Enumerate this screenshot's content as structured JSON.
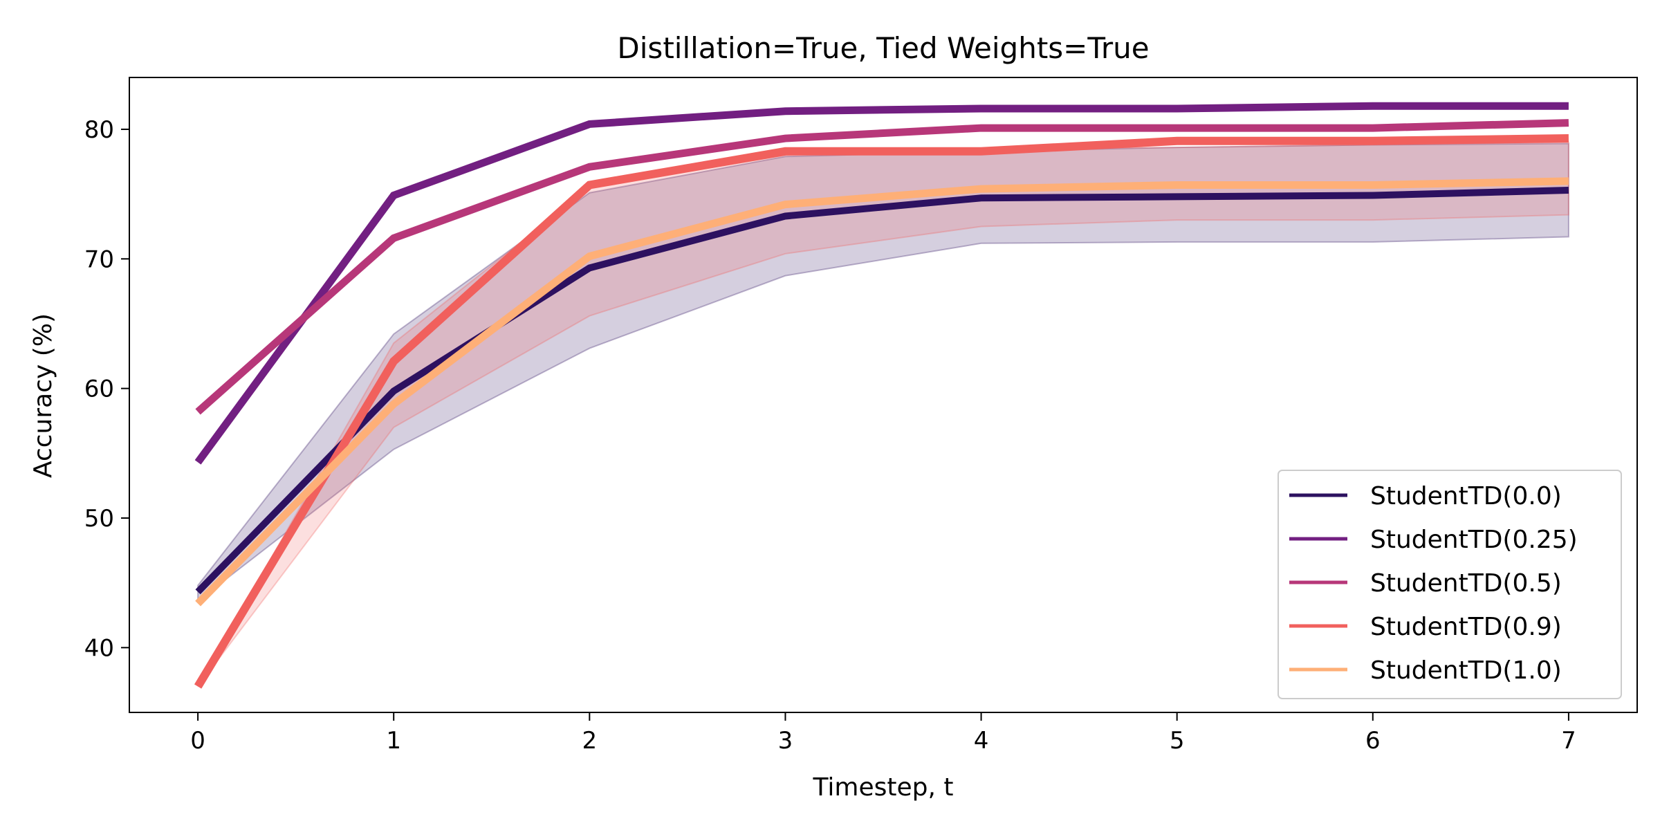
{
  "chart_data": {
    "type": "line",
    "title": "Distillation=True, Tied Weights=True",
    "xlabel": "Timestep, t",
    "ylabel": "Accuracy (%)",
    "x": [
      0,
      1,
      2,
      3,
      4,
      5,
      6,
      7
    ],
    "xlim": [
      -0.35,
      7.35
    ],
    "ylim": [
      35,
      84
    ],
    "xticks": [
      "0",
      "1",
      "2",
      "3",
      "4",
      "5",
      "6",
      "7"
    ],
    "yticks": [
      "40",
      "50",
      "60",
      "70",
      "80"
    ],
    "grid": false,
    "legend_position": "lower-right",
    "series": [
      {
        "name": "StudentTD(0.0)",
        "color": "#2d1160",
        "values": [
          44.3,
          59.8,
          69.3,
          73.3,
          74.7,
          74.8,
          74.9,
          75.3
        ],
        "band_lower": [
          43.6,
          55.3,
          63.1,
          68.7,
          71.2,
          71.3,
          71.3,
          71.7
        ],
        "band_upper": [
          44.8,
          64.2,
          75.1,
          77.9,
          78.3,
          78.6,
          78.8,
          78.9
        ]
      },
      {
        "name": "StudentTD(0.25)",
        "color": "#721f81",
        "values": [
          54.3,
          74.9,
          80.4,
          81.4,
          81.6,
          81.6,
          81.8,
          81.8
        ]
      },
      {
        "name": "StudentTD(0.5)",
        "color": "#b73779",
        "values": [
          58.2,
          71.6,
          77.1,
          79.3,
          80.1,
          80.1,
          80.1,
          80.5
        ]
      },
      {
        "name": "StudentTD(0.9)",
        "color": "#f1605d",
        "values": [
          37.0,
          62.1,
          75.7,
          78.3,
          78.3,
          79.1,
          79.1,
          79.3
        ],
        "band_lower": [
          37.0,
          57.0,
          65.6,
          70.4,
          72.5,
          73.0,
          73.0,
          73.4
        ],
        "band_upper": [
          37.0,
          63.5,
          75.5,
          78.0,
          78.5,
          78.6,
          78.8,
          79.0
        ]
      },
      {
        "name": "StudentTD(1.0)",
        "color": "#feaf77",
        "values": [
          43.4,
          58.8,
          70.2,
          74.2,
          75.4,
          75.7,
          75.7,
          76.0
        ]
      }
    ],
    "band_colors": {
      "StudentTD(0.0)": "#2d1160",
      "StudentTD(0.9)": "#f1605d"
    }
  }
}
